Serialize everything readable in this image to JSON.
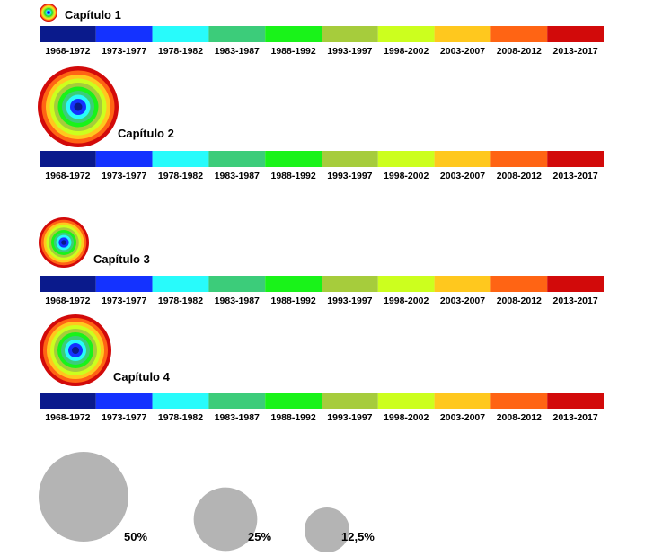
{
  "chart_data": {
    "type": "other",
    "periods": [
      "1968-1972",
      "1973-1977",
      "1978-1982",
      "1983-1987",
      "1988-1992",
      "1993-1997",
      "1998-2002",
      "2003-2007",
      "2008-2012",
      "2013-2017"
    ],
    "colors": [
      "#0a1a8c",
      "#1432ff",
      "#28fbfb",
      "#3ccc7a",
      "#19f319",
      "#a6cc3c",
      "#ccff1e",
      "#ffc81e",
      "#ff6414",
      "#d20a0a"
    ],
    "chapters": [
      {
        "label": "Capítulo 1",
        "rings": [
          1,
          1,
          1,
          1,
          1,
          1,
          1,
          1,
          1,
          1
        ]
      },
      {
        "label": "Capítulo 2",
        "rings": [
          1,
          1,
          1,
          1,
          1,
          1,
          1,
          1,
          1,
          1
        ]
      },
      {
        "label": "Capítulo 3",
        "rings": [
          1,
          1,
          1,
          1,
          1,
          1,
          1,
          1,
          1,
          1
        ]
      },
      {
        "label": "Capítulo 4",
        "rings": [
          1,
          1,
          1,
          1,
          1,
          1,
          1,
          1,
          1,
          1
        ]
      }
    ],
    "size_legend": [
      {
        "label": "50%",
        "value": 50
      },
      {
        "label": "25%",
        "value": 25
      },
      {
        "label": "12,5%",
        "value": 12.5
      }
    ],
    "legend_color": "#b4b4b4"
  }
}
